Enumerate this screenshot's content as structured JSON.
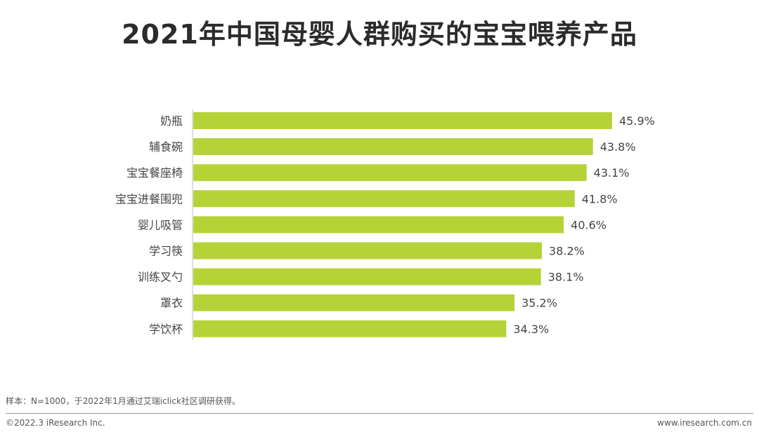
{
  "header": {
    "title": "2021年中国母婴人群购买的宝宝喂养产品"
  },
  "chart_data": {
    "type": "bar",
    "orientation": "horizontal",
    "categories": [
      "奶瓶",
      "辅食碗",
      "宝宝餐座椅",
      "宝宝进餐围兜",
      "婴儿吸管",
      "学习筷",
      "训练叉勺",
      "罩衣",
      "学饮杯"
    ],
    "values": [
      45.9,
      43.8,
      43.1,
      41.8,
      40.6,
      38.2,
      38.1,
      35.2,
      34.3
    ],
    "value_labels": [
      "45.9%",
      "43.8%",
      "43.1%",
      "41.8%",
      "40.6%",
      "38.2%",
      "38.1%",
      "35.2%",
      "34.3%"
    ],
    "unit": "%",
    "bar_color": "#b5d336",
    "axis_color": "#bfbfbf",
    "grid": false,
    "legend": "none"
  },
  "footer": {
    "note": "样本：N=1000，于2022年1月通过艾瑞iclick社区调研获得。",
    "copyright": "©2022.3 iResearch Inc.",
    "website": "www.iresearch.com.cn"
  }
}
